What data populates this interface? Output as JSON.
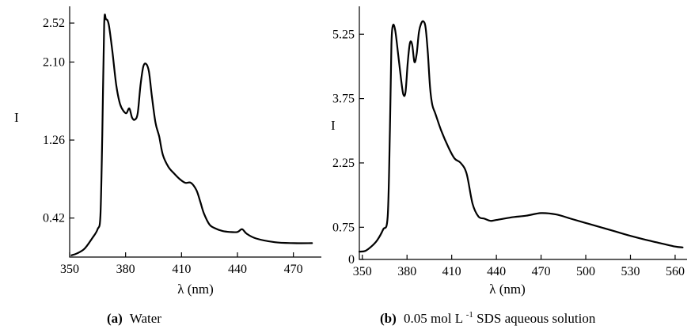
{
  "chart_data": [
    {
      "type": "line",
      "caption_label": "(a)",
      "caption_text": "Water",
      "xlabel": "λ (nm)",
      "ylabel": "I",
      "xlim": [
        350,
        485
      ],
      "ylim": [
        0,
        2.7
      ],
      "xticks": [
        350,
        380,
        410,
        440,
        470
      ],
      "yticks": [
        0.42,
        1.26,
        2.1,
        2.52
      ],
      "ytick_labels": [
        "0.42",
        "1.26",
        "2.10",
        "2.52"
      ],
      "x": [
        351,
        354,
        358,
        362,
        365,
        366.5,
        367.5,
        368.5,
        369.5,
        371,
        373,
        375,
        377,
        379,
        380.5,
        382,
        383.5,
        385,
        386.5,
        388,
        389.5,
        391,
        392.5,
        394,
        396,
        398,
        400,
        403,
        406,
        409,
        412,
        415,
        418,
        420,
        422,
        425,
        428,
        432,
        436,
        440,
        442.5,
        445,
        450,
        460,
        470,
        480
      ],
      "y": [
        0.02,
        0.04,
        0.09,
        0.2,
        0.3,
        0.45,
        1.3,
        2.5,
        2.56,
        2.5,
        2.2,
        1.85,
        1.65,
        1.57,
        1.55,
        1.6,
        1.5,
        1.48,
        1.55,
        1.85,
        2.05,
        2.08,
        2.0,
        1.75,
        1.45,
        1.3,
        1.1,
        0.97,
        0.9,
        0.84,
        0.8,
        0.8,
        0.72,
        0.6,
        0.47,
        0.35,
        0.31,
        0.28,
        0.27,
        0.27,
        0.3,
        0.25,
        0.2,
        0.16,
        0.15,
        0.15
      ]
    },
    {
      "type": "line",
      "caption_label": "(b)",
      "caption_text_prefix": "0.05 mol L",
      "caption_text_sup": "-1",
      "caption_text_suffix": " SDS aqueous solution",
      "xlabel": "λ (nm)",
      "ylabel": "I",
      "xlim": [
        348,
        568
      ],
      "ylim": [
        0,
        5.9
      ],
      "xticks": [
        350,
        380,
        410,
        440,
        470,
        500,
        530,
        560
      ],
      "yticks": [
        0,
        0.75,
        2.25,
        3.75,
        5.25
      ],
      "ytick_labels": [
        "0",
        "0.75",
        "2.25",
        "3.75",
        "5.25"
      ],
      "x": [
        348,
        352,
        356,
        360,
        364,
        367,
        368.5,
        369.5,
        370.5,
        372,
        374,
        376,
        377.5,
        379,
        380.5,
        382,
        383.5,
        385,
        386.5,
        388,
        389.5,
        391,
        392.5,
        394,
        395.5,
        397,
        399,
        403,
        408,
        412,
        416,
        420,
        424,
        428,
        432,
        436,
        440,
        450,
        460,
        470,
        480,
        490,
        500,
        510,
        520,
        530,
        540,
        550,
        560,
        565
      ],
      "y": [
        0.18,
        0.2,
        0.3,
        0.45,
        0.7,
        1.0,
        3.0,
        5.0,
        5.45,
        5.35,
        4.8,
        4.2,
        3.85,
        3.9,
        4.6,
        5.05,
        5.0,
        4.6,
        4.8,
        5.3,
        5.5,
        5.55,
        5.4,
        4.8,
        4.0,
        3.6,
        3.4,
        3.0,
        2.6,
        2.35,
        2.25,
        2.0,
        1.3,
        1.0,
        0.95,
        0.9,
        0.92,
        0.98,
        1.02,
        1.08,
        1.05,
        0.95,
        0.85,
        0.75,
        0.65,
        0.55,
        0.46,
        0.38,
        0.3,
        0.28
      ]
    }
  ]
}
